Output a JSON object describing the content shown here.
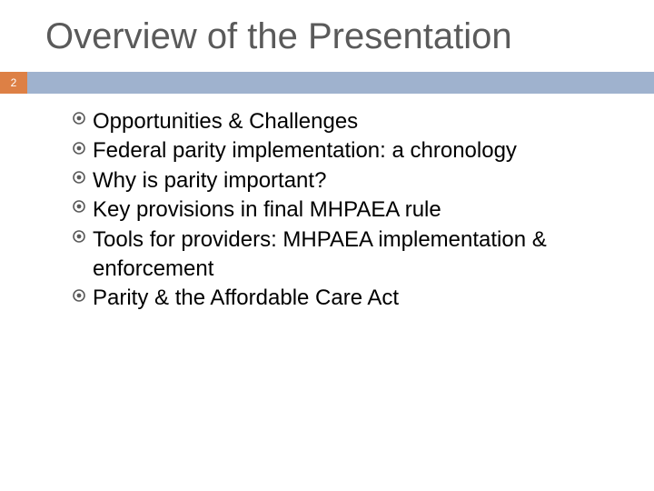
{
  "slide": {
    "title": "Overview of the Presentation",
    "title_color": "#5a5a5a",
    "title_fontsize": 40,
    "page_number": "2",
    "badge_bg": "#dd8045",
    "badge_text_color": "#ffffff",
    "band_color": "#9fb2ce",
    "background_color": "#ffffff",
    "bullet_color": "#5a5a5a",
    "text_color": "#000000",
    "body_fontsize": 24,
    "bullets": [
      "Opportunities & Challenges",
      "Federal parity implementation: a chronology",
      "Why is parity important?",
      "Key provisions in final MHPAEA rule",
      "Tools for providers: MHPAEA implementation & enforcement",
      "Parity & the Affordable Care Act"
    ]
  }
}
